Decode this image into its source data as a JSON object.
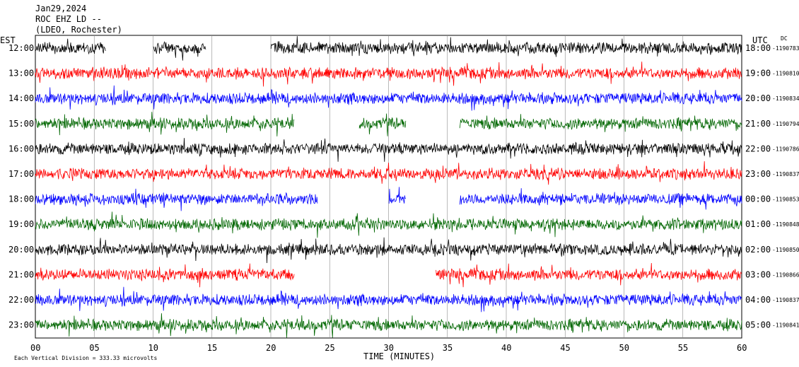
{
  "header": {
    "date": "Jan29,2024",
    "station": "ROC EHZ LD --",
    "network": "(LDEO, Rochester)"
  },
  "axis": {
    "left_label": "EST",
    "right_label": "UTC",
    "dc_label": "DC",
    "x_title": "TIME (MINUTES)",
    "scale_note": "Each Vertical Division = 333.33 microvolts"
  },
  "colors": [
    "#000000",
    "#ff0000",
    "#0000ff",
    "#006600"
  ],
  "chart_data": {
    "type": "line",
    "xlabel": "TIME (MINUTES)",
    "xlim": [
      0,
      60
    ],
    "x_ticks": [
      "00",
      "05",
      "10",
      "15",
      "20",
      "25",
      "30",
      "35",
      "40",
      "45",
      "50",
      "55",
      "60"
    ],
    "rows": [
      {
        "est": "12:00",
        "utc": "18:00",
        "dc": "-1190783",
        "color": "#000000",
        "gaps": [
          [
            6,
            10
          ],
          [
            14.5,
            20
          ]
        ]
      },
      {
        "est": "13:00",
        "utc": "19:00",
        "dc": "-1190810",
        "color": "#ff0000",
        "gaps": []
      },
      {
        "est": "14:00",
        "utc": "20:00",
        "dc": "-1190834",
        "color": "#0000ff",
        "gaps": []
      },
      {
        "est": "15:00",
        "utc": "21:00",
        "dc": "-1190794",
        "color": "#006600",
        "gaps": [
          [
            22,
            27.5
          ],
          [
            31.5,
            36
          ]
        ]
      },
      {
        "est": "16:00",
        "utc": "22:00",
        "dc": "-1190786",
        "color": "#000000",
        "gaps": []
      },
      {
        "est": "17:00",
        "utc": "23:00",
        "dc": "-1190837",
        "color": "#ff0000",
        "gaps": []
      },
      {
        "est": "18:00",
        "utc": "00:00",
        "dc": "-1190853",
        "color": "#0000ff",
        "gaps": [
          [
            24,
            30
          ],
          [
            31.5,
            36
          ]
        ]
      },
      {
        "est": "19:00",
        "utc": "01:00",
        "dc": "-1190848",
        "color": "#006600",
        "gaps": []
      },
      {
        "est": "20:00",
        "utc": "02:00",
        "dc": "-1190850",
        "color": "#000000",
        "gaps": []
      },
      {
        "est": "21:00",
        "utc": "03:00",
        "dc": "-1190866",
        "color": "#ff0000",
        "gaps": [
          [
            22,
            34
          ]
        ]
      },
      {
        "est": "22:00",
        "utc": "04:00",
        "dc": "-1190837",
        "color": "#0000ff",
        "gaps": []
      },
      {
        "est": "23:00",
        "utc": "05:00",
        "dc": "-1190841",
        "color": "#006600",
        "gaps": []
      }
    ]
  }
}
